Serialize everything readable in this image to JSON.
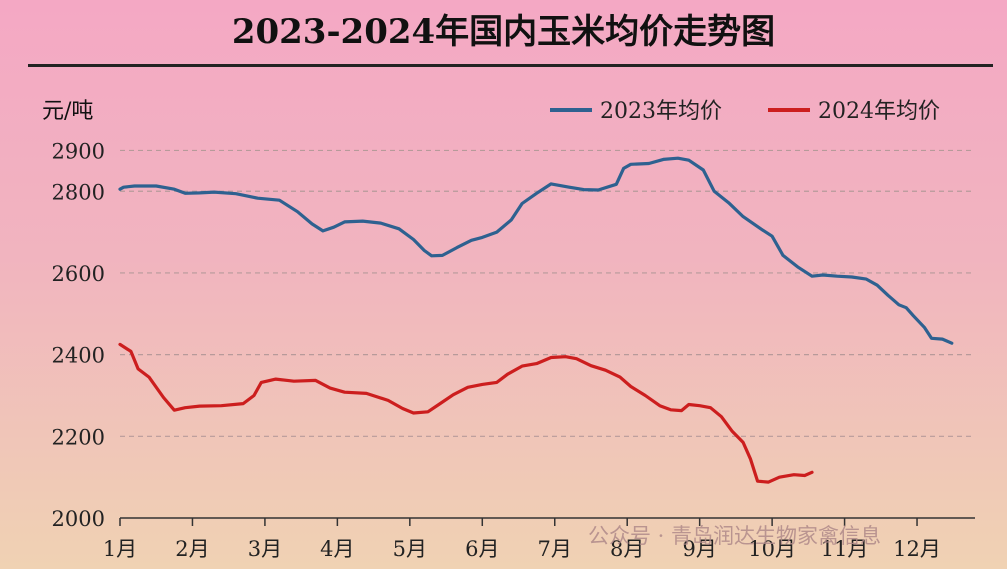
{
  "chart_data": {
    "type": "line",
    "title": "2023-2024年国内玉米均价走势图",
    "ylabel": "元/吨",
    "xlabel": "",
    "ylim": [
      2000,
      2950
    ],
    "y_ticks": [
      2000,
      2200,
      2400,
      2600,
      2800,
      2900
    ],
    "categories": [
      "1月",
      "2月",
      "3月",
      "4月",
      "5月",
      "6月",
      "7月",
      "8月",
      "9月",
      "10月",
      "11月",
      "12月"
    ],
    "grid": true,
    "legend": "top-right",
    "series": [
      {
        "name": "2023年均价",
        "color": "#2e6190",
        "points": [
          [
            0.0,
            2805
          ],
          [
            0.05,
            2810
          ],
          [
            0.2,
            2813
          ],
          [
            0.5,
            2813
          ],
          [
            0.75,
            2805
          ],
          [
            0.9,
            2795
          ],
          [
            1.1,
            2796
          ],
          [
            1.3,
            2798
          ],
          [
            1.6,
            2794
          ],
          [
            1.9,
            2783
          ],
          [
            2.2,
            2778
          ],
          [
            2.45,
            2750
          ],
          [
            2.65,
            2720
          ],
          [
            2.8,
            2703
          ],
          [
            2.95,
            2712
          ],
          [
            3.1,
            2725
          ],
          [
            3.35,
            2727
          ],
          [
            3.6,
            2722
          ],
          [
            3.85,
            2708
          ],
          [
            4.05,
            2682
          ],
          [
            4.2,
            2655
          ],
          [
            4.3,
            2642
          ],
          [
            4.45,
            2643
          ],
          [
            4.65,
            2662
          ],
          [
            4.85,
            2680
          ],
          [
            5.0,
            2687
          ],
          [
            5.2,
            2700
          ],
          [
            5.4,
            2730
          ],
          [
            5.55,
            2770
          ],
          [
            5.75,
            2795
          ],
          [
            5.95,
            2818
          ],
          [
            6.2,
            2810
          ],
          [
            6.4,
            2804
          ],
          [
            6.6,
            2803
          ],
          [
            6.85,
            2817
          ],
          [
            6.95,
            2856
          ],
          [
            7.05,
            2866
          ],
          [
            7.3,
            2868
          ],
          [
            7.5,
            2878
          ],
          [
            7.7,
            2881
          ],
          [
            7.85,
            2876
          ],
          [
            8.05,
            2852
          ],
          [
            8.2,
            2800
          ],
          [
            8.4,
            2772
          ],
          [
            8.6,
            2738
          ],
          [
            8.85,
            2707
          ],
          [
            9.0,
            2690
          ],
          [
            9.15,
            2643
          ],
          [
            9.35,
            2615
          ],
          [
            9.55,
            2592
          ],
          [
            9.7,
            2595
          ],
          [
            9.9,
            2592
          ],
          [
            10.1,
            2590
          ],
          [
            10.3,
            2585
          ],
          [
            10.45,
            2570
          ],
          [
            10.6,
            2545
          ],
          [
            10.75,
            2522
          ],
          [
            10.85,
            2515
          ],
          [
            10.95,
            2495
          ],
          [
            11.1,
            2467
          ],
          [
            11.2,
            2440
          ],
          [
            11.35,
            2438
          ],
          [
            11.48,
            2428
          ]
        ]
      },
      {
        "name": "2024年均价",
        "color": "#cc1e1e",
        "points": [
          [
            0.0,
            2425
          ],
          [
            0.15,
            2408
          ],
          [
            0.25,
            2365
          ],
          [
            0.4,
            2345
          ],
          [
            0.6,
            2295
          ],
          [
            0.75,
            2264
          ],
          [
            0.9,
            2270
          ],
          [
            1.1,
            2274
          ],
          [
            1.4,
            2275
          ],
          [
            1.7,
            2280
          ],
          [
            1.85,
            2300
          ],
          [
            1.95,
            2332
          ],
          [
            2.15,
            2340
          ],
          [
            2.4,
            2335
          ],
          [
            2.7,
            2337
          ],
          [
            2.9,
            2318
          ],
          [
            3.1,
            2308
          ],
          [
            3.4,
            2305
          ],
          [
            3.7,
            2288
          ],
          [
            3.9,
            2268
          ],
          [
            4.05,
            2257
          ],
          [
            4.25,
            2260
          ],
          [
            4.4,
            2278
          ],
          [
            4.6,
            2302
          ],
          [
            4.8,
            2320
          ],
          [
            5.0,
            2327
          ],
          [
            5.2,
            2332
          ],
          [
            5.35,
            2352
          ],
          [
            5.55,
            2372
          ],
          [
            5.75,
            2378
          ],
          [
            5.95,
            2393
          ],
          [
            6.15,
            2395
          ],
          [
            6.3,
            2390
          ],
          [
            6.5,
            2373
          ],
          [
            6.7,
            2362
          ],
          [
            6.9,
            2345
          ],
          [
            7.05,
            2322
          ],
          [
            7.25,
            2300
          ],
          [
            7.45,
            2275
          ],
          [
            7.6,
            2265
          ],
          [
            7.75,
            2263
          ],
          [
            7.85,
            2278
          ],
          [
            8.0,
            2275
          ],
          [
            8.15,
            2270
          ],
          [
            8.3,
            2248
          ],
          [
            8.45,
            2212
          ],
          [
            8.6,
            2185
          ],
          [
            8.7,
            2145
          ],
          [
            8.8,
            2090
          ],
          [
            8.95,
            2088
          ],
          [
            9.1,
            2100
          ],
          [
            9.3,
            2106
          ],
          [
            9.45,
            2104
          ],
          [
            9.55,
            2112
          ]
        ]
      }
    ]
  },
  "watermark": "公众号 · 青岛润达生物家禽信息"
}
